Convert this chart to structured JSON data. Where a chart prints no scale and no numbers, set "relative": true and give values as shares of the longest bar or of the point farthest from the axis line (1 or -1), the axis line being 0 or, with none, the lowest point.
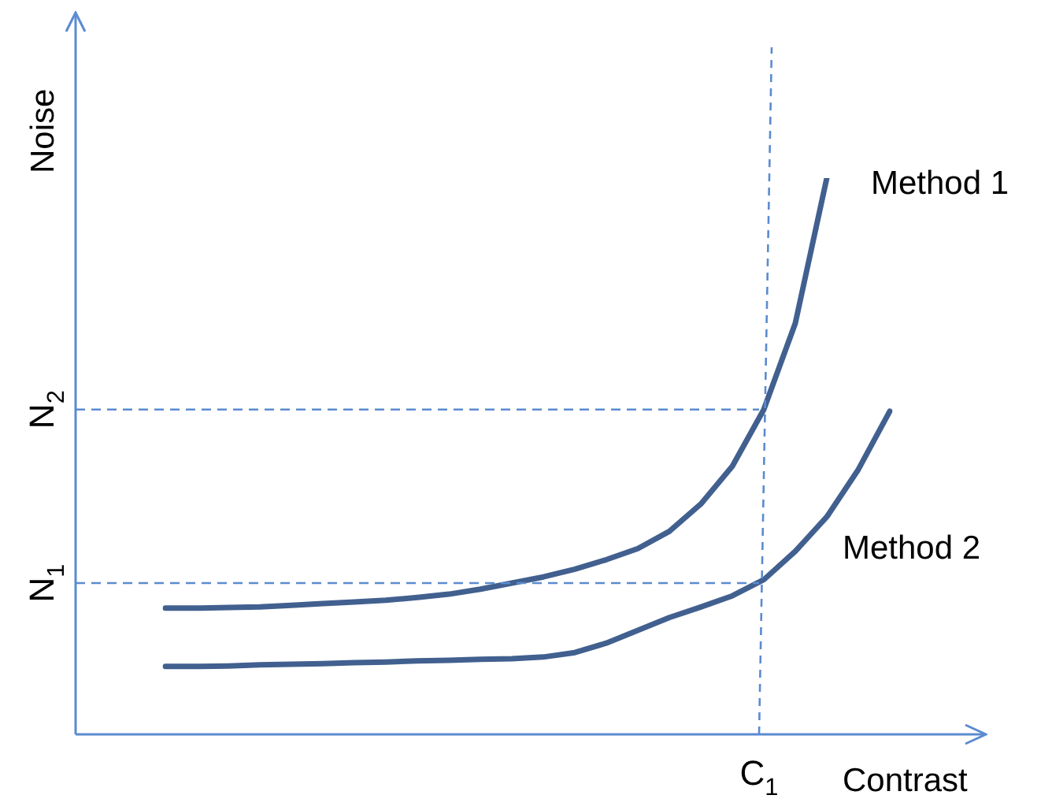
{
  "chart_data": {
    "type": "line",
    "relative": true,
    "xlabel": "Contrast",
    "ylabel": "Noise",
    "categories": [
      null,
      null,
      null,
      null,
      null,
      null,
      null,
      null,
      null,
      null,
      null,
      null,
      null,
      null,
      null,
      null,
      null,
      null,
      null,
      null,
      null,
      null,
      null,
      null
    ],
    "legend": false,
    "marker": "none",
    "line_style": "solid",
    "series": [
      {
        "name": "Method 1",
        "color": "#41608f",
        "values": [
          0.227,
          0.227,
          0.228,
          0.229,
          0.232,
          0.235,
          0.238,
          0.241,
          0.246,
          0.252,
          0.261,
          0.272,
          0.283,
          0.297,
          0.314,
          0.334,
          0.365,
          0.414,
          0.482,
          0.584,
          0.739,
          1,
          null,
          null
        ]
      },
      {
        "name": "Method 2",
        "color": "#41608f",
        "values": [
          0.122,
          0.122,
          0.123,
          0.125,
          0.126,
          0.127,
          0.129,
          0.13,
          0.132,
          0.133,
          0.135,
          0.136,
          0.139,
          0.147,
          0.164,
          0.187,
          0.21,
          0.229,
          0.249,
          0.278,
          0.329,
          0.391,
          0.476,
          0.581
        ]
      }
    ],
    "ref_lines": [
      {
        "axis": "y",
        "value": 0.584,
        "label": "N$_{2}$",
        "color": "#5b8bd0",
        "line_style": "dashed"
      },
      {
        "axis": "y",
        "value": 0.272,
        "label": "N$_{1}$",
        "color": "#5b8bd0",
        "line_style": "dashed"
      }
    ],
    "annotations": [
      "C$_{1}$"
    ]
  }
}
